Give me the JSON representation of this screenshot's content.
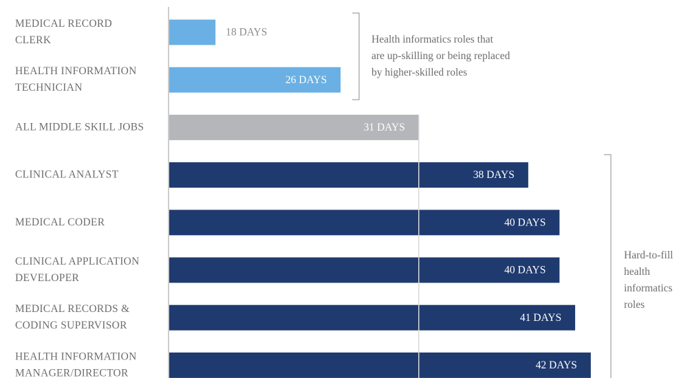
{
  "chart_data": {
    "type": "hbar",
    "categories": [
      "MEDICAL RECORD\nCLERK",
      "HEALTH INFORMATION\nTECHNICIAN",
      "ALL MIDDLE SKILL JOBS",
      "CLINICAL ANALYST",
      "MEDICAL CODER",
      "CLINICAL APPLICATION\nDEVELOPER",
      "MEDICAL RECORDS &\nCODING SUPERVISOR",
      "HEALTH INFORMATION\nMANAGER/DIRECTOR"
    ],
    "values": [
      18,
      26,
      31,
      38,
      40,
      40,
      41,
      42
    ],
    "value_labels": [
      "18 DAYS",
      "26 DAYS",
      "31 DAYS",
      "38 DAYS",
      "40 DAYS",
      "40 DAYS",
      "41 DAYS",
      "42 DAYS"
    ],
    "colors": [
      "#6ab0e4",
      "#6ab0e4",
      "#b5b6b9",
      "#1f3a6e",
      "#1f3a6e",
      "#1f3a6e",
      "#1f3a6e",
      "#1f3a6e"
    ],
    "xlim": [
      15,
      45
    ],
    "annotations": [
      "Health informatics roles that\nare up-skilling or being replaced\nby higher-skilled roles",
      "Hard-to-fill\nhealth\ninformatics\nroles"
    ]
  }
}
